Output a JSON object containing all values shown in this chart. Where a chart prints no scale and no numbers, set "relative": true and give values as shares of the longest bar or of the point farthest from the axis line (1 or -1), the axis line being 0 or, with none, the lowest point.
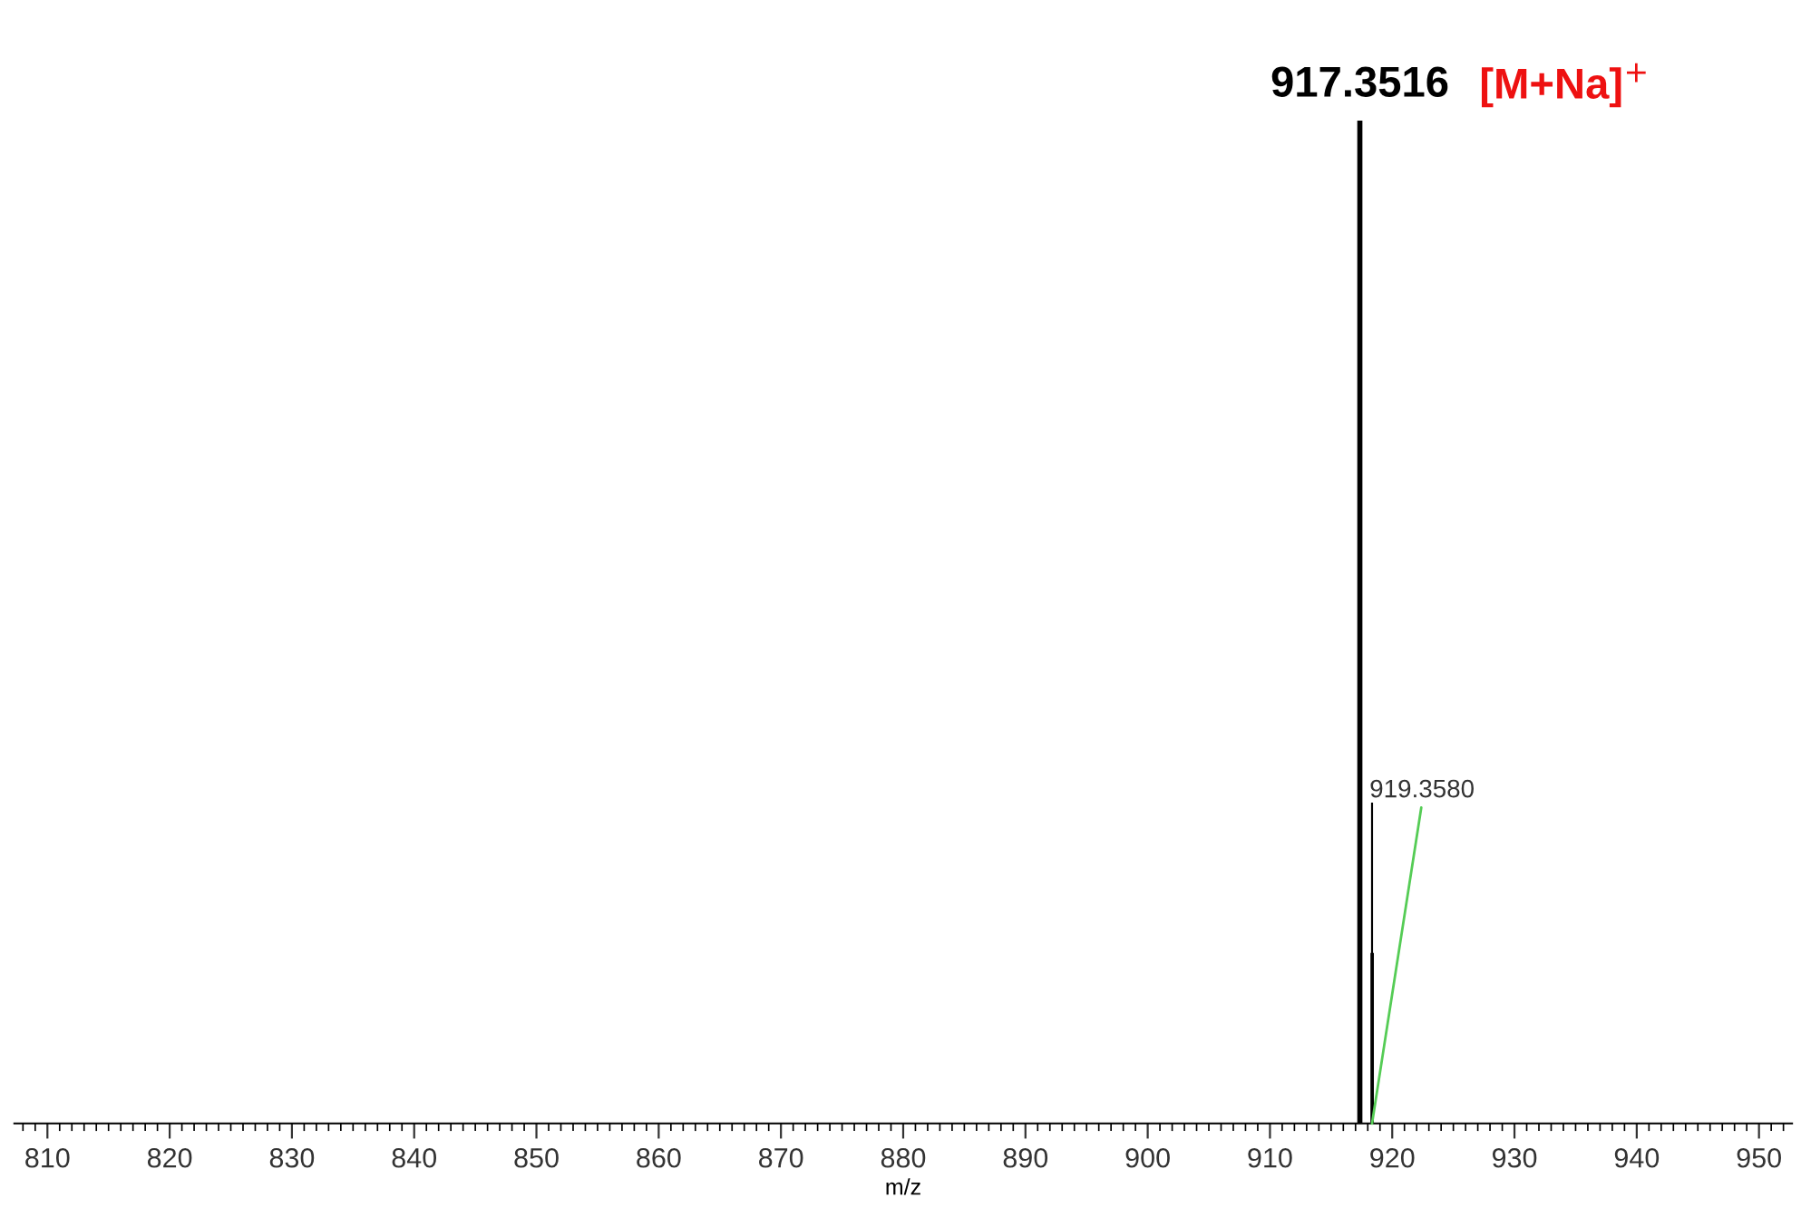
{
  "chart_data": {
    "type": "bar",
    "relative": true,
    "xlabel": "m/z",
    "xlim": [
      807.3,
      952.7
    ],
    "xticks": [
      810,
      820,
      830,
      840,
      850,
      860,
      870,
      880,
      890,
      900,
      910,
      920,
      930,
      940,
      950
    ],
    "series": [
      {
        "color": "#000000",
        "x": [
          917.3516,
          918.35,
          918.36
        ],
        "values": [
          1,
          0.32,
          0.17
        ]
      }
    ],
    "annotations": [
      {
        "text": "917.3516",
        "x": 917.3516,
        "y": 1
      },
      "[M+Na]$^{+}$",
      "919.3580"
    ],
    "grid": false
  }
}
